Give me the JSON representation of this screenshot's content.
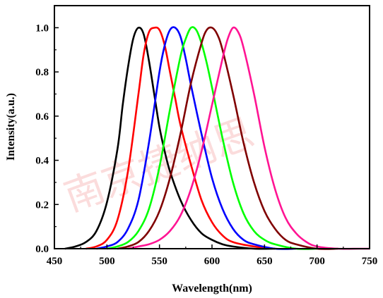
{
  "chart_data": {
    "type": "line",
    "title": "",
    "xlabel": "Wavelength(nm)",
    "ylabel": "Intensity(a.u.)",
    "xlim": [
      450,
      750
    ],
    "ylim": [
      0.0,
      1.1
    ],
    "x_ticks": [
      450,
      500,
      550,
      600,
      650,
      700,
      750
    ],
    "y_ticks": [
      0.0,
      0.2,
      0.4,
      0.6,
      0.8,
      1.0
    ],
    "x_tick_labels": [
      "450",
      "500",
      "550",
      "600",
      "650",
      "700",
      "750"
    ],
    "y_tick_labels": [
      "0.0",
      "0.2",
      "0.4",
      "0.6",
      "0.8",
      "1.0"
    ],
    "grid": false,
    "legend": "none",
    "series": [
      {
        "color": "#000000",
        "x": [
          460,
          470,
          480,
          490,
          500,
          510,
          515,
          520,
          525,
          530,
          535,
          540,
          545,
          550,
          555,
          560,
          570,
          580,
          590,
          600,
          610,
          620,
          640,
          660
        ],
        "y": [
          0.0,
          0.01,
          0.03,
          0.08,
          0.21,
          0.45,
          0.65,
          0.82,
          0.95,
          1.0,
          0.97,
          0.85,
          0.7,
          0.55,
          0.44,
          0.35,
          0.22,
          0.13,
          0.07,
          0.04,
          0.02,
          0.01,
          0.0,
          0.0
        ]
      },
      {
        "color": "#ff0000",
        "x": [
          480,
          490,
          500,
          510,
          520,
          530,
          535,
          540,
          545,
          550,
          555,
          560,
          565,
          570,
          580,
          590,
          600,
          610,
          620,
          640,
          660
        ],
        "y": [
          0.0,
          0.01,
          0.04,
          0.13,
          0.35,
          0.7,
          0.88,
          0.98,
          1.0,
          0.99,
          0.92,
          0.8,
          0.68,
          0.56,
          0.38,
          0.22,
          0.12,
          0.06,
          0.03,
          0.01,
          0.0
        ]
      },
      {
        "color": "#0000ff",
        "x": [
          490,
          500,
          510,
          520,
          530,
          540,
          550,
          555,
          560,
          565,
          570,
          575,
          580,
          590,
          600,
          610,
          620,
          630,
          640,
          660,
          680
        ],
        "y": [
          0.0,
          0.01,
          0.03,
          0.09,
          0.22,
          0.48,
          0.8,
          0.92,
          0.99,
          1.0,
          0.96,
          0.86,
          0.74,
          0.52,
          0.32,
          0.18,
          0.09,
          0.04,
          0.02,
          0.0,
          0.0
        ]
      },
      {
        "color": "#00ff00",
        "x": [
          500,
          510,
          520,
          530,
          540,
          550,
          560,
          570,
          575,
          580,
          585,
          590,
          595,
          600,
          610,
          620,
          630,
          640,
          650,
          660,
          680,
          700
        ],
        "y": [
          0.0,
          0.01,
          0.03,
          0.08,
          0.18,
          0.37,
          0.63,
          0.87,
          0.95,
          1.0,
          0.99,
          0.93,
          0.84,
          0.73,
          0.5,
          0.3,
          0.16,
          0.08,
          0.04,
          0.02,
          0.0,
          0.0
        ]
      },
      {
        "color": "#800000",
        "x": [
          510,
          520,
          530,
          540,
          550,
          560,
          570,
          580,
          590,
          595,
          600,
          605,
          610,
          620,
          630,
          640,
          650,
          660,
          670,
          680,
          700,
          720
        ],
        "y": [
          0.0,
          0.01,
          0.03,
          0.08,
          0.17,
          0.32,
          0.52,
          0.75,
          0.93,
          0.99,
          1.0,
          0.97,
          0.9,
          0.7,
          0.48,
          0.3,
          0.17,
          0.09,
          0.04,
          0.02,
          0.0,
          0.0
        ]
      },
      {
        "color": "#ff1493",
        "x": [
          520,
          530,
          540,
          550,
          560,
          570,
          580,
          590,
          600,
          610,
          615,
          620,
          625,
          630,
          640,
          650,
          660,
          670,
          680,
          690,
          700,
          720,
          740,
          750
        ],
        "y": [
          0.0,
          0.01,
          0.02,
          0.04,
          0.08,
          0.15,
          0.27,
          0.44,
          0.65,
          0.86,
          0.95,
          1.0,
          0.98,
          0.91,
          0.7,
          0.46,
          0.27,
          0.14,
          0.07,
          0.03,
          0.01,
          0.0,
          0.0,
          0.0
        ]
      }
    ]
  },
  "watermark": {
    "text": "南京捷纳思",
    "color": "#eb5050"
  }
}
